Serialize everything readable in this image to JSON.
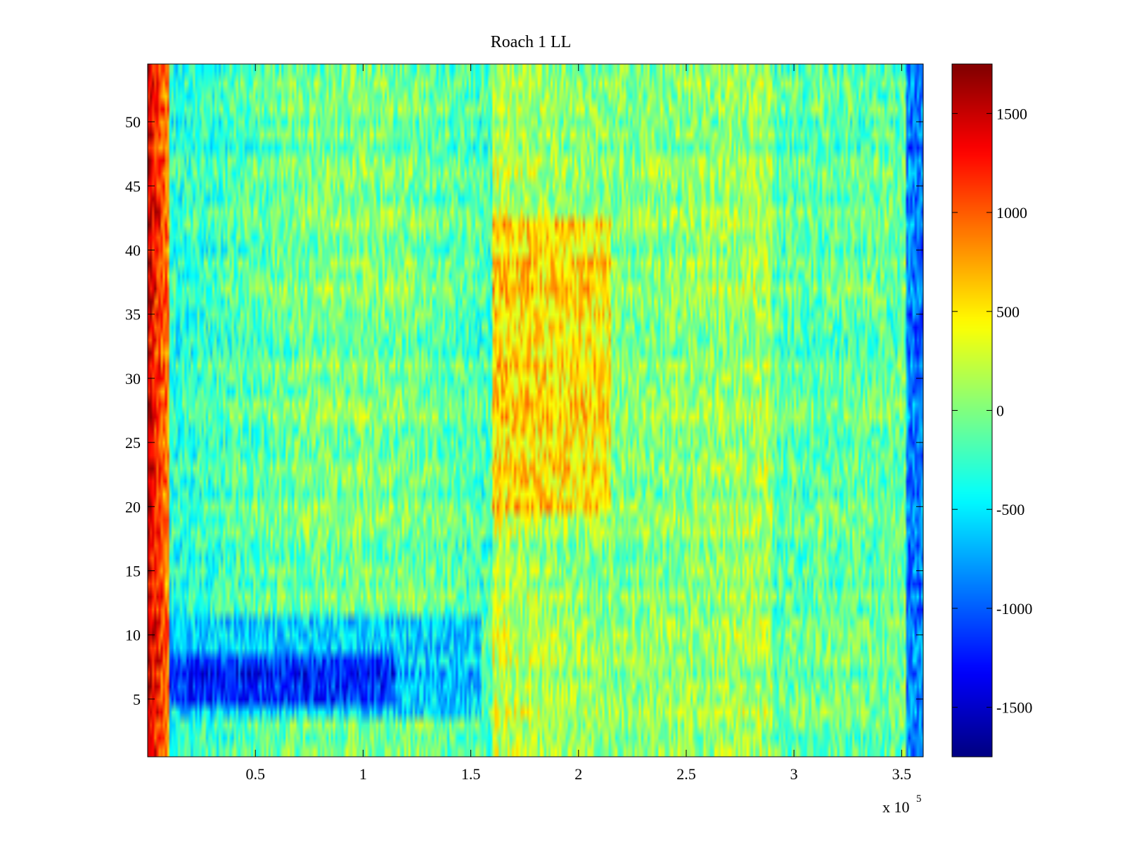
{
  "chart_data": {
    "type": "heatmap",
    "title": "Roach 1 LL",
    "xlabel": "",
    "ylabel": "",
    "x_multiplier_label": {
      "base": "x 10",
      "exponent": "5"
    },
    "xlim": [
      0,
      3.6
    ],
    "ylim": [
      0.5,
      54.5
    ],
    "rows": 54,
    "columns": 360,
    "x_ticks": [
      0.5,
      1,
      1.5,
      2,
      2.5,
      3,
      3.5
    ],
    "x_tick_labels": [
      "0.5",
      "1",
      "1.5",
      "2",
      "2.5",
      "3",
      "3.5"
    ],
    "y_ticks": [
      5,
      10,
      15,
      20,
      25,
      30,
      35,
      40,
      45,
      50
    ],
    "y_tick_labels": [
      "5",
      "10",
      "15",
      "20",
      "25",
      "30",
      "35",
      "40",
      "45",
      "50"
    ],
    "colormap": "jet",
    "clim": [
      -1750,
      1750
    ],
    "colorbar_ticks": [
      1500,
      1000,
      500,
      0,
      -500,
      -1000,
      -1500
    ],
    "colorbar_tick_labels": [
      "1500",
      "1000",
      "500",
      "0",
      "-500",
      "-1000",
      "-1500"
    ],
    "grid": false,
    "description_of_field": {
      "left_edge_band": {
        "x_range": [
          0,
          0.1
        ],
        "rows": [
          1,
          54
        ],
        "value": 1500
      },
      "low_region": {
        "x_range": [
          0.1,
          1.15
        ],
        "rows": [
          5,
          8
        ],
        "value": -1200
      },
      "low_region_fringe": {
        "x_range": [
          0.1,
          1.55
        ],
        "rows": [
          4,
          11
        ],
        "value": -650
      },
      "high_region": {
        "x_range": [
          1.6,
          2.15
        ],
        "rows": [
          20,
          42
        ],
        "value": 500
      },
      "right_edge_band": {
        "x_range": [
          3.52,
          3.6
        ],
        "rows": [
          1,
          54
        ],
        "value": -900
      },
      "background": {
        "value": 0
      }
    }
  }
}
